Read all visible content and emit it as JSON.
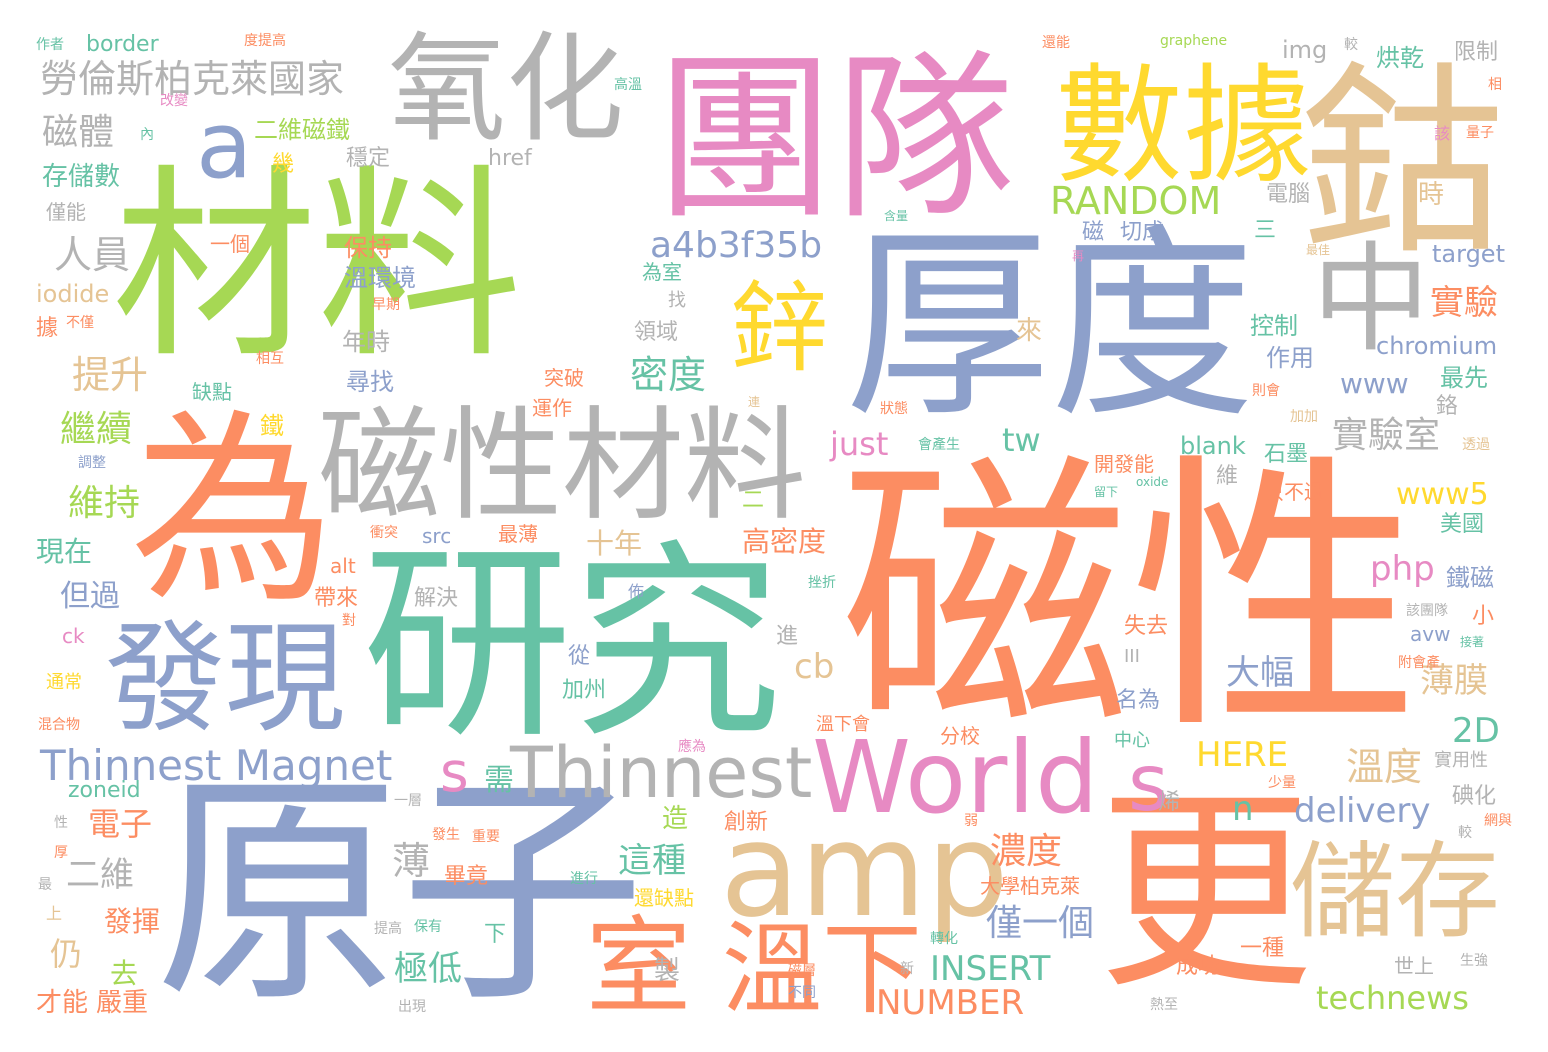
{
  "palette": {
    "green": "#a6d854",
    "orange": "#fc8d62",
    "blue": "#8da0cb",
    "pink": "#e78ac3",
    "gray": "#b3b3b3",
    "tan": "#e5c494",
    "teal": "#66c2a5",
    "yellow": "#ffd92f"
  },
  "words": [
    {
      "text": "磁性",
      "color": "orange"
    },
    {
      "text": "材料",
      "color": "green"
    },
    {
      "text": "原子",
      "color": "blue"
    },
    {
      "text": "團隊",
      "color": "pink"
    },
    {
      "text": "研究",
      "color": "teal"
    },
    {
      "text": "厚度",
      "color": "blue"
    },
    {
      "text": "為",
      "color": "orange"
    },
    {
      "text": "更",
      "color": "orange"
    },
    {
      "text": "鈷",
      "color": "tan"
    },
    {
      "text": "amp",
      "color": "tan"
    },
    {
      "text": "磁性材料",
      "color": "gray"
    },
    {
      "text": "數據",
      "color": "yellow"
    },
    {
      "text": "氧化",
      "color": "gray"
    },
    {
      "text": "發現",
      "color": "blue"
    },
    {
      "text": "World",
      "color": "pink"
    },
    {
      "text": "中",
      "color": "gray"
    },
    {
      "text": "儲存",
      "color": "tan"
    },
    {
      "text": "溫下",
      "color": "orange"
    },
    {
      "text": "Thinnest",
      "color": "gray"
    },
    {
      "text": "室",
      "color": "orange"
    },
    {
      "text": "s",
      "color": "pink"
    },
    {
      "text": "a",
      "color": "blue"
    },
    {
      "text": "鋅",
      "color": "yellow"
    },
    {
      "text": "Thinnest Magnet",
      "color": "blue"
    },
    {
      "text": "勞倫斯柏克萊國家",
      "color": "gray"
    },
    {
      "text": "a4b3f35b",
      "color": "blue"
    },
    {
      "text": "RANDOM",
      "color": "green"
    },
    {
      "text": "磁體",
      "color": "gray"
    },
    {
      "text": "二維磁鐵",
      "color": "green"
    },
    {
      "text": "存儲數",
      "color": "teal"
    },
    {
      "text": "人員",
      "color": "gray"
    },
    {
      "text": "提升",
      "color": "tan"
    },
    {
      "text": "繼續",
      "color": "green"
    },
    {
      "text": "維持",
      "color": "green"
    },
    {
      "text": "現在",
      "color": "teal"
    },
    {
      "text": "但過",
      "color": "blue"
    },
    {
      "text": "實驗",
      "color": "orange"
    },
    {
      "text": "密度",
      "color": "teal"
    },
    {
      "text": "實驗室",
      "color": "gray"
    },
    {
      "text": "www",
      "color": "blue"
    },
    {
      "text": "www5",
      "color": "yellow"
    },
    {
      "text": "php",
      "color": "pink"
    },
    {
      "text": "tw",
      "color": "teal"
    },
    {
      "text": "just",
      "color": "pink"
    },
    {
      "text": "cb",
      "color": "tan"
    },
    {
      "text": "大幅",
      "color": "blue"
    },
    {
      "text": "薄膜",
      "color": "tan"
    },
    {
      "text": "2D",
      "color": "teal"
    },
    {
      "text": "HERE",
      "color": "yellow"
    },
    {
      "text": "溫度",
      "color": "tan"
    },
    {
      "text": "delivery",
      "color": "blue"
    },
    {
      "text": "n",
      "color": "teal"
    },
    {
      "text": "需",
      "color": "teal"
    },
    {
      "text": "電子",
      "color": "orange"
    },
    {
      "text": "二維",
      "color": "gray"
    },
    {
      "text": "這種",
      "color": "teal"
    },
    {
      "text": "濃度",
      "color": "orange"
    },
    {
      "text": "僅一個",
      "color": "blue"
    },
    {
      "text": "薄",
      "color": "gray"
    },
    {
      "text": "極低",
      "color": "teal"
    },
    {
      "text": "INSERT",
      "color": "teal"
    },
    {
      "text": "NUMBER",
      "color": "orange"
    },
    {
      "text": "technews",
      "color": "green"
    },
    {
      "text": "仍",
      "color": "tan"
    },
    {
      "text": "去",
      "color": "green"
    },
    {
      "text": "發揮",
      "color": "orange"
    },
    {
      "text": "嚴重",
      "color": "orange"
    },
    {
      "text": "才能",
      "color": "orange"
    },
    {
      "text": "十年",
      "color": "tan"
    },
    {
      "text": "高密度",
      "color": "orange"
    },
    {
      "text": "鐵磁",
      "color": "blue"
    },
    {
      "text": "美國",
      "color": "teal"
    },
    {
      "text": "尋找",
      "color": "blue"
    },
    {
      "text": "年時",
      "color": "gray"
    },
    {
      "text": "保持",
      "color": "orange"
    },
    {
      "text": "溫環境",
      "color": "blue"
    },
    {
      "text": "控制",
      "color": "teal"
    },
    {
      "text": "作用",
      "color": "blue"
    },
    {
      "text": "chromium",
      "color": "blue"
    },
    {
      "text": "最先",
      "color": "teal"
    },
    {
      "text": "target",
      "color": "blue"
    },
    {
      "text": "iodide",
      "color": "tan"
    },
    {
      "text": "border",
      "color": "teal"
    },
    {
      "text": "img",
      "color": "gray"
    },
    {
      "text": "href",
      "color": "gray"
    },
    {
      "text": "graphene",
      "color": "green"
    },
    {
      "text": "烘乾",
      "color": "teal"
    },
    {
      "text": "限制",
      "color": "gray"
    },
    {
      "text": "來",
      "color": "tan"
    },
    {
      "text": "領域",
      "color": "gray"
    },
    {
      "text": "為室",
      "color": "teal"
    },
    {
      "text": "石墨",
      "color": "teal"
    },
    {
      "text": "只不過",
      "color": "orange"
    },
    {
      "text": "blank",
      "color": "teal"
    },
    {
      "text": "開發能",
      "color": "orange"
    },
    {
      "text": "切成",
      "color": "blue"
    },
    {
      "text": "磁",
      "color": "blue"
    },
    {
      "text": "電腦",
      "color": "gray"
    },
    {
      "text": "時",
      "color": "tan"
    },
    {
      "text": "穩定",
      "color": "gray"
    },
    {
      "text": "幾",
      "color": "yellow"
    },
    {
      "text": "一個",
      "color": "orange"
    },
    {
      "text": "僅能",
      "color": "gray"
    },
    {
      "text": "缺點",
      "color": "teal"
    },
    {
      "text": "運作",
      "color": "orange"
    },
    {
      "text": "突破",
      "color": "orange"
    },
    {
      "text": "src",
      "color": "blue"
    },
    {
      "text": "最薄",
      "color": "orange"
    },
    {
      "text": "alt",
      "color": "orange"
    },
    {
      "text": "帶來",
      "color": "orange"
    },
    {
      "text": "解決",
      "color": "gray"
    },
    {
      "text": "失去",
      "color": "orange"
    },
    {
      "text": "小",
      "color": "orange"
    },
    {
      "text": "從",
      "color": "blue"
    },
    {
      "text": "加州",
      "color": "teal"
    },
    {
      "text": "進",
      "color": "gray"
    },
    {
      "text": "分校",
      "color": "orange"
    },
    {
      "text": "中心",
      "color": "teal"
    },
    {
      "text": "名為",
      "color": "blue"
    },
    {
      "text": "溫下會",
      "color": "orange"
    },
    {
      "text": "avw",
      "color": "blue"
    },
    {
      "text": "實用性",
      "color": "gray"
    },
    {
      "text": "碘化",
      "color": "gray"
    },
    {
      "text": "造",
      "color": "green"
    },
    {
      "text": "創新",
      "color": "orange"
    },
    {
      "text": "大學柏克萊",
      "color": "orange"
    },
    {
      "text": "還缺點",
      "color": "yellow"
    },
    {
      "text": "畢竟",
      "color": "orange"
    },
    {
      "text": "下",
      "color": "teal"
    },
    {
      "text": "製",
      "color": "gray"
    },
    {
      "text": "成功",
      "color": "orange"
    },
    {
      "text": "一種",
      "color": "orange"
    },
    {
      "text": "世上",
      "color": "gray"
    },
    {
      "text": "zoneid",
      "color": "teal"
    },
    {
      "text": "ck",
      "color": "pink"
    },
    {
      "text": "通常",
      "color": "yellow"
    },
    {
      "text": "鐵",
      "color": "yellow"
    },
    {
      "text": "三",
      "color": "teal"
    },
    {
      "text": "二",
      "color": "green"
    },
    {
      "text": "維",
      "color": "gray"
    },
    {
      "text": "鉻",
      "color": "gray"
    },
    {
      "text": "據",
      "color": "orange"
    },
    {
      "text": "作者",
      "color": "teal"
    },
    {
      "text": "度提高",
      "color": "orange"
    },
    {
      "text": "還能",
      "color": "orange"
    },
    {
      "text": "高溫",
      "color": "teal"
    },
    {
      "text": "改變",
      "color": "pink"
    },
    {
      "text": "內",
      "color": "teal"
    },
    {
      "text": "較",
      "color": "gray"
    },
    {
      "text": "相",
      "color": "orange"
    },
    {
      "text": "量子",
      "color": "orange"
    },
    {
      "text": "該",
      "color": "pink"
    },
    {
      "text": "含量",
      "color": "teal"
    },
    {
      "text": "最佳",
      "color": "tan"
    },
    {
      "text": "再",
      "color": "pink"
    },
    {
      "text": "早期",
      "color": "orange"
    },
    {
      "text": "不僅",
      "color": "orange"
    },
    {
      "text": "相互",
      "color": "orange"
    },
    {
      "text": "找",
      "color": "gray"
    },
    {
      "text": "則會",
      "color": "orange"
    },
    {
      "text": "加加",
      "color": "tan"
    },
    {
      "text": "狀態",
      "color": "orange"
    },
    {
      "text": "透過",
      "color": "tan"
    },
    {
      "text": "連",
      "color": "tan"
    },
    {
      "text": "會產生",
      "color": "teal"
    },
    {
      "text": "調整",
      "color": "blue"
    },
    {
      "text": "留下",
      "color": "teal"
    },
    {
      "text": "oxide",
      "color": "teal"
    },
    {
      "text": "衝突",
      "color": "orange"
    },
    {
      "text": "挫折",
      "color": "teal"
    },
    {
      "text": "佈",
      "color": "blue"
    },
    {
      "text": "對",
      "color": "orange"
    },
    {
      "text": "該團隊",
      "color": "gray"
    },
    {
      "text": "接著",
      "color": "teal"
    },
    {
      "text": "附會產",
      "color": "orange"
    },
    {
      "text": "III",
      "color": "gray"
    },
    {
      "text": "混合物",
      "color": "orange"
    },
    {
      "text": "應為",
      "color": "pink"
    },
    {
      "text": "少量",
      "color": "orange"
    },
    {
      "text": "一層",
      "color": "gray"
    },
    {
      "text": "烯",
      "color": "gray"
    },
    {
      "text": "弱",
      "color": "orange"
    },
    {
      "text": "較",
      "color": "gray"
    },
    {
      "text": "網與",
      "color": "orange"
    },
    {
      "text": "性",
      "color": "gray"
    },
    {
      "text": "厚",
      "color": "orange"
    },
    {
      "text": "發生",
      "color": "orange"
    },
    {
      "text": "重要",
      "color": "orange"
    },
    {
      "text": "最",
      "color": "gray"
    },
    {
      "text": "進行",
      "color": "teal"
    },
    {
      "text": "上",
      "color": "tan"
    },
    {
      "text": "提高",
      "color": "gray"
    },
    {
      "text": "保有",
      "color": "teal"
    },
    {
      "text": "轉化",
      "color": "teal"
    },
    {
      "text": "新",
      "color": "gray"
    },
    {
      "text": "生強",
      "color": "gray"
    },
    {
      "text": "磁層",
      "color": "orange"
    },
    {
      "text": "不同",
      "color": "blue"
    },
    {
      "text": "出現",
      "color": "gray"
    },
    {
      "text": "熱至",
      "color": "gray"
    }
  ]
}
